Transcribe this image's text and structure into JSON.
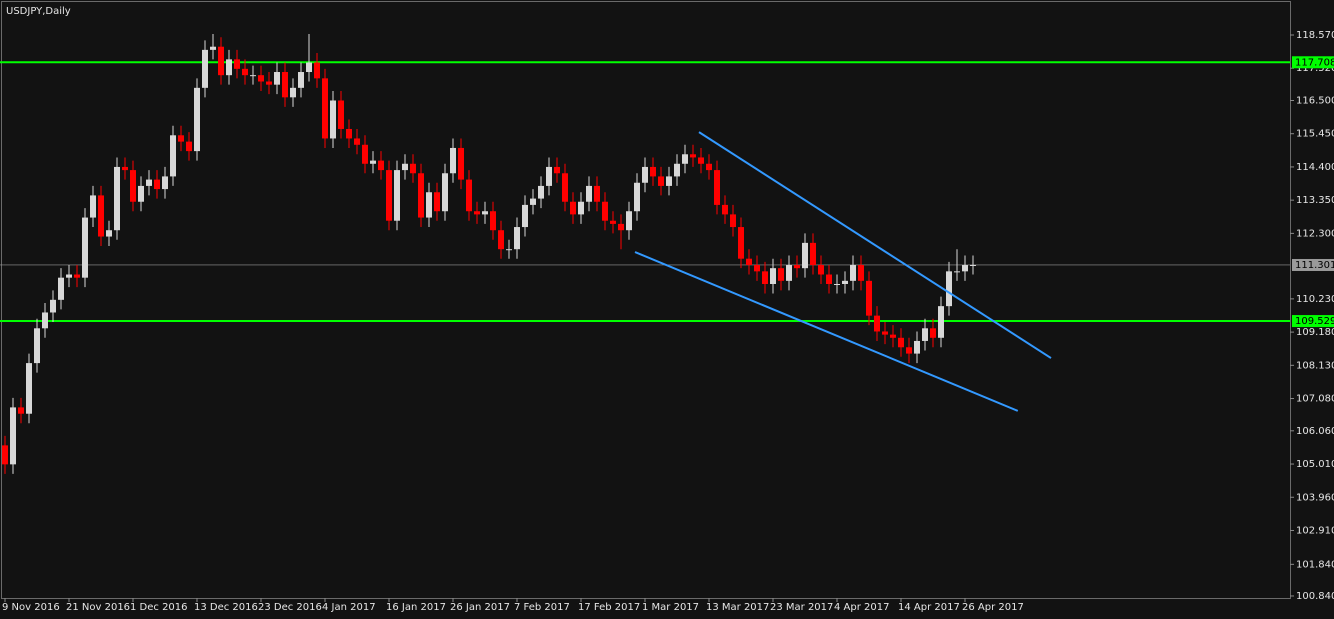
{
  "chart_data": {
    "type": "candlestick",
    "title": "USDJPY,Daily",
    "categories": [
      "9 Nov 2016",
      null,
      null,
      null,
      null,
      null,
      null,
      null,
      "21 Nov 2016",
      null,
      null,
      null,
      null,
      null,
      null,
      null,
      "1 Dec 2016",
      null,
      null,
      null,
      null,
      null,
      null,
      null,
      "13 Dec 2016",
      null,
      null,
      null,
      null,
      null,
      null,
      null,
      "23 Dec 2016",
      null,
      null,
      null,
      null,
      null,
      null,
      null,
      "4 Jan 2017",
      null,
      null,
      null,
      null,
      null,
      null,
      null,
      "16 Jan 2017",
      null,
      null,
      null,
      null,
      null,
      null,
      null,
      "26 Jan 2017",
      null,
      null,
      null,
      null,
      null,
      null,
      null,
      "7 Feb 2017",
      null,
      null,
      null,
      null,
      null,
      null,
      null,
      "17 Feb 2017",
      null,
      null,
      null,
      null,
      null,
      null,
      null,
      "1 Mar 2017",
      null,
      null,
      null,
      null,
      null,
      null,
      null,
      "13 Mar 2017",
      null,
      null,
      null,
      null,
      null,
      null,
      null,
      "23 Mar 2017",
      null,
      null,
      null,
      null,
      null,
      null,
      null,
      "4 Apr 2017",
      null,
      null,
      null,
      null,
      null,
      null,
      null,
      "14 Apr 2017",
      null,
      null,
      null,
      null,
      null,
      null,
      null,
      "26 Apr 2017",
      null
    ],
    "open": [
      105.6,
      105.0,
      106.8,
      106.6,
      108.2,
      109.3,
      109.8,
      110.2,
      110.9,
      111.0,
      110.9,
      112.8,
      113.5,
      112.2,
      112.4,
      114.4,
      114.3,
      113.3,
      113.8,
      114.0,
      113.7,
      114.1,
      115.4,
      115.2,
      114.9,
      116.9,
      118.1,
      118.2,
      117.3,
      117.8,
      117.5,
      117.3,
      117.3,
      117.1,
      117.0,
      117.4,
      116.6,
      116.9,
      117.4,
      117.7,
      117.2,
      115.3,
      116.5,
      115.6,
      115.3,
      115.1,
      114.5,
      114.6,
      114.3,
      112.7,
      114.3,
      114.5,
      114.2,
      112.8,
      113.6,
      113.0,
      114.2,
      115.0,
      114.0,
      113.0,
      112.9,
      113.0,
      112.4,
      111.8,
      111.8,
      112.5,
      113.2,
      113.4,
      113.8,
      114.4,
      114.2,
      113.3,
      112.9,
      113.3,
      113.8,
      113.3,
      112.7,
      112.6,
      112.4,
      113.0,
      113.9,
      114.4,
      114.1,
      113.8,
      114.1,
      114.5,
      114.8,
      114.7,
      114.5,
      114.3,
      113.2,
      112.9,
      112.5,
      111.5,
      111.3,
      111.1,
      110.7,
      111.2,
      110.8,
      111.3,
      111.2,
      112.0,
      111.3,
      111.0,
      110.7,
      110.7,
      110.8,
      111.3,
      110.8,
      109.7,
      109.2,
      109.1,
      109.0,
      108.7,
      108.5,
      108.9,
      109.3,
      109.0,
      110.0,
      111.1,
      111.1,
      111.3
    ],
    "high": [
      105.9,
      107.1,
      107.1,
      108.5,
      109.6,
      110.1,
      110.5,
      111.2,
      111.3,
      111.3,
      113.1,
      113.8,
      113.8,
      112.7,
      114.7,
      114.7,
      114.6,
      114.1,
      114.3,
      114.3,
      114.4,
      115.7,
      115.7,
      115.5,
      117.2,
      118.4,
      118.6,
      118.5,
      118.1,
      118.1,
      117.8,
      117.6,
      117.6,
      117.4,
      117.7,
      117.7,
      117.2,
      117.7,
      118.6,
      118.0,
      117.5,
      116.8,
      116.8,
      115.9,
      115.6,
      115.4,
      114.9,
      114.9,
      114.6,
      114.6,
      114.8,
      114.8,
      114.5,
      113.9,
      113.9,
      114.5,
      115.3,
      115.3,
      114.3,
      113.3,
      113.3,
      113.3,
      112.7,
      112.1,
      112.8,
      113.5,
      113.7,
      114.1,
      114.7,
      114.7,
      114.5,
      113.6,
      113.6,
      114.1,
      114.1,
      113.6,
      113.0,
      112.9,
      113.3,
      114.2,
      114.7,
      114.7,
      114.4,
      114.4,
      114.8,
      115.1,
      115.1,
      115.0,
      114.8,
      114.6,
      113.5,
      113.2,
      112.8,
      111.8,
      111.6,
      111.4,
      111.5,
      111.5,
      111.6,
      111.6,
      112.3,
      112.3,
      111.6,
      111.3,
      111.0,
      111.1,
      111.6,
      111.6,
      111.1,
      110.0,
      109.5,
      109.4,
      109.3,
      109.0,
      109.2,
      109.6,
      109.6,
      110.3,
      111.4,
      111.8,
      111.6,
      111.6
    ],
    "low": [
      104.7,
      104.7,
      106.3,
      106.3,
      107.9,
      109.0,
      109.5,
      109.9,
      110.6,
      110.6,
      110.6,
      112.5,
      111.9,
      111.9,
      112.1,
      114.0,
      113.0,
      113.0,
      113.5,
      113.4,
      113.4,
      113.8,
      114.9,
      114.6,
      114.6,
      116.6,
      117.8,
      117.0,
      117.0,
      117.2,
      117.0,
      117.0,
      116.8,
      116.7,
      116.7,
      116.3,
      116.3,
      116.6,
      117.1,
      116.9,
      115.0,
      115.0,
      115.3,
      115.0,
      114.8,
      114.2,
      114.2,
      114.0,
      112.4,
      112.4,
      114.0,
      113.9,
      112.5,
      112.5,
      112.7,
      112.7,
      113.9,
      113.7,
      112.7,
      112.6,
      112.6,
      112.1,
      111.5,
      111.5,
      111.5,
      112.2,
      112.9,
      113.1,
      113.5,
      113.9,
      113.0,
      112.6,
      112.6,
      113.0,
      113.0,
      112.4,
      112.3,
      111.8,
      112.1,
      112.7,
      113.6,
      113.8,
      113.5,
      113.5,
      113.8,
      114.2,
      114.4,
      114.2,
      114.0,
      112.9,
      112.6,
      112.2,
      111.2,
      111.0,
      110.8,
      110.4,
      110.4,
      110.5,
      110.5,
      110.9,
      110.9,
      111.0,
      110.7,
      110.4,
      110.4,
      110.4,
      110.5,
      110.5,
      109.4,
      108.9,
      108.8,
      108.7,
      108.4,
      108.2,
      108.2,
      108.6,
      108.7,
      108.7,
      109.7,
      110.8,
      110.8,
      111.0
    ],
    "close": [
      105.0,
      106.8,
      106.6,
      108.2,
      109.3,
      109.8,
      110.2,
      110.9,
      111.0,
      110.9,
      112.8,
      113.5,
      112.2,
      112.4,
      114.4,
      114.3,
      113.3,
      113.8,
      114.0,
      113.7,
      114.1,
      115.4,
      115.2,
      114.9,
      116.9,
      118.1,
      118.2,
      117.3,
      117.8,
      117.5,
      117.3,
      117.3,
      117.1,
      117.0,
      117.4,
      116.6,
      116.9,
      117.4,
      117.7,
      117.2,
      115.3,
      116.5,
      115.6,
      115.3,
      115.1,
      114.5,
      114.6,
      114.3,
      112.7,
      114.3,
      114.5,
      114.2,
      112.8,
      113.6,
      113.0,
      114.2,
      115.0,
      114.0,
      113.0,
      112.9,
      113.0,
      112.4,
      111.8,
      111.8,
      112.5,
      113.2,
      113.4,
      113.8,
      114.4,
      114.2,
      113.3,
      112.9,
      113.3,
      113.8,
      113.3,
      112.7,
      112.6,
      112.4,
      113.0,
      113.9,
      114.4,
      114.1,
      113.8,
      114.1,
      114.5,
      114.8,
      114.7,
      114.5,
      114.3,
      113.2,
      112.9,
      112.5,
      111.5,
      111.3,
      111.1,
      110.7,
      111.2,
      110.8,
      111.3,
      111.2,
      112.0,
      111.3,
      111.0,
      110.7,
      110.7,
      110.8,
      111.3,
      110.8,
      109.7,
      109.2,
      109.1,
      109.0,
      108.7,
      108.5,
      108.9,
      109.3,
      109.0,
      110.0,
      111.1,
      111.1,
      111.3,
      111.301
    ],
    "up_color": "#d8d8d8",
    "down_color": "#ff0000",
    "ylim": [
      100.776,
      119.676
    ],
    "yticks": [
      {
        "value": 118.57,
        "label": "118.570"
      },
      {
        "value": 117.52,
        "label": "117.520"
      },
      {
        "value": 116.5,
        "label": "116.500"
      },
      {
        "value": 115.45,
        "label": "115.450"
      },
      {
        "value": 114.4,
        "label": "114.400"
      },
      {
        "value": 113.35,
        "label": "113.350"
      },
      {
        "value": 112.3,
        "label": "112.300"
      },
      {
        "value": 110.23,
        "label": "110.230"
      },
      {
        "value": 109.18,
        "label": "109.180"
      },
      {
        "value": 108.13,
        "label": "108.130"
      },
      {
        "value": 107.08,
        "label": "107.080"
      },
      {
        "value": 106.06,
        "label": "106.060"
      },
      {
        "value": 105.01,
        "label": "105.010"
      },
      {
        "value": 103.96,
        "label": "103.960"
      },
      {
        "value": 102.91,
        "label": "102.910"
      },
      {
        "value": 101.84,
        "label": "101.840"
      },
      {
        "value": 100.84,
        "label": "100.840"
      }
    ],
    "hlines": [
      {
        "value": 117.708,
        "color": "#00ff00"
      },
      {
        "value": 109.529,
        "color": "#00ff00"
      },
      {
        "value": 111.301,
        "color": "#9a9a9a"
      }
    ],
    "trendlines": [
      {
        "x": [
          86.75,
          130.75
        ],
        "y": [
          115.5,
          108.36
        ],
        "color": "#3399ff"
      },
      {
        "x": [
          78.75,
          126.6
        ],
        "y": [
          111.71,
          106.69
        ],
        "color": "#3399ff"
      }
    ]
  }
}
